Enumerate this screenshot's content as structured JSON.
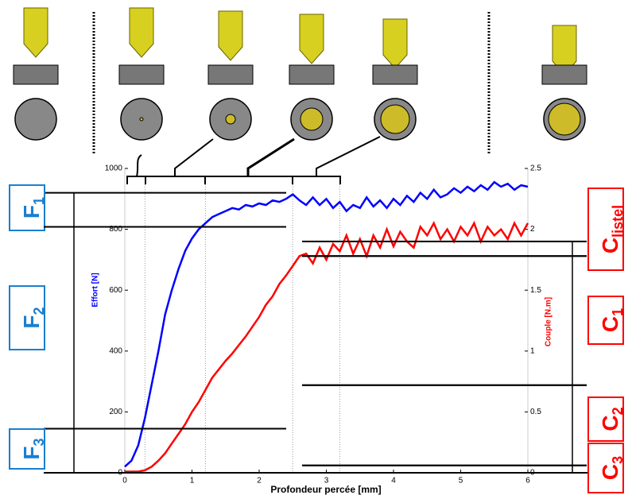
{
  "chart_data": {
    "type": "line",
    "x_label": "Profondeur percée [mm]",
    "y_label": "Effort [N]",
    "y2_label": "Couple [N.m]",
    "xlim": [
      0,
      6
    ],
    "xticks": [
      0,
      1,
      2,
      3,
      4,
      5,
      6
    ],
    "ylim": [
      0,
      1000
    ],
    "yticks": [
      0,
      200,
      400,
      600,
      800,
      1000
    ],
    "y2lim": [
      0,
      2.5
    ],
    "y2ticks": [
      0,
      0.5,
      1,
      1.5,
      2,
      2.5
    ],
    "series": [
      {
        "name": "Effort",
        "color": "#0000ff",
        "axis": "y",
        "x": [
          0,
          0.1,
          0.2,
          0.3,
          0.4,
          0.5,
          0.6,
          0.7,
          0.8,
          0.9,
          1.0,
          1.1,
          1.2,
          1.3,
          1.4,
          1.5,
          1.6,
          1.7,
          1.8,
          1.9,
          2.0,
          2.1,
          2.2,
          2.3,
          2.4,
          2.5,
          2.6,
          2.7,
          2.8,
          2.9,
          3.0,
          3.1,
          3.2,
          3.3,
          3.4,
          3.5,
          3.6,
          3.7,
          3.8,
          3.9,
          4.0,
          4.1,
          4.2,
          4.3,
          4.4,
          4.5,
          4.6,
          4.7,
          4.8,
          4.9,
          5.0,
          5.1,
          5.2,
          5.3,
          5.4,
          5.5,
          5.6,
          5.7,
          5.8,
          5.9,
          6.0
        ],
        "values": [
          20,
          40,
          90,
          180,
          290,
          400,
          520,
          600,
          670,
          730,
          770,
          800,
          820,
          840,
          850,
          860,
          870,
          865,
          880,
          875,
          885,
          880,
          895,
          890,
          900,
          915,
          895,
          880,
          905,
          880,
          900,
          870,
          890,
          860,
          880,
          870,
          905,
          875,
          895,
          870,
          900,
          880,
          910,
          890,
          920,
          900,
          930,
          905,
          915,
          935,
          920,
          940,
          925,
          945,
          930,
          955,
          940,
          950,
          930,
          945,
          940
        ]
      },
      {
        "name": "Couple",
        "color": "#ff0000",
        "axis": "y2",
        "x": [
          0,
          0.1,
          0.2,
          0.3,
          0.4,
          0.5,
          0.6,
          0.7,
          0.8,
          0.9,
          1.0,
          1.1,
          1.2,
          1.3,
          1.4,
          1.5,
          1.6,
          1.7,
          1.8,
          1.9,
          2.0,
          2.1,
          2.2,
          2.3,
          2.4,
          2.5,
          2.6,
          2.7,
          2.8,
          2.9,
          3.0,
          3.1,
          3.2,
          3.3,
          3.4,
          3.5,
          3.6,
          3.7,
          3.8,
          3.9,
          4.0,
          4.1,
          4.2,
          4.3,
          4.4,
          4.5,
          4.6,
          4.7,
          4.8,
          4.9,
          5.0,
          5.1,
          5.2,
          5.3,
          5.4,
          5.5,
          5.6,
          5.7,
          5.8,
          5.9,
          6.0
        ],
        "values": [
          0.01,
          0.01,
          0.01,
          0.02,
          0.05,
          0.1,
          0.16,
          0.24,
          0.32,
          0.4,
          0.5,
          0.58,
          0.68,
          0.78,
          0.85,
          0.92,
          0.98,
          1.05,
          1.12,
          1.2,
          1.28,
          1.38,
          1.45,
          1.55,
          1.62,
          1.7,
          1.78,
          1.8,
          1.72,
          1.85,
          1.75,
          1.88,
          1.82,
          1.95,
          1.8,
          1.92,
          1.78,
          1.95,
          1.85,
          2.0,
          1.86,
          1.98,
          1.9,
          1.85,
          2.02,
          1.95,
          2.05,
          1.92,
          2.0,
          1.9,
          2.02,
          1.95,
          2.05,
          1.9,
          2.02,
          1.95,
          2.0,
          1.92,
          2.05,
          1.95,
          2.05
        ]
      }
    ],
    "effort_annotations": [
      {
        "letter": "F",
        "sub": "1",
        "from": 808,
        "to": 920
      },
      {
        "letter": "F",
        "sub": "2",
        "from": 145,
        "to": 808
      },
      {
        "letter": "F",
        "sub": "3",
        "from": 0,
        "to": 145
      }
    ],
    "couple_annotations": [
      {
        "letter": "C",
        "sub": "listel",
        "from": 1.78,
        "to": 1.9
      },
      {
        "letter": "C",
        "sub": "1",
        "from": 0.72,
        "to": 1.78
      },
      {
        "letter": "C",
        "sub": "2",
        "from": 0.06,
        "to": 0.72
      },
      {
        "letter": "C",
        "sub": "3",
        "from": 0,
        "to": 0.06
      }
    ],
    "phase_depths": [
      0.3,
      1.2,
      2.5,
      3.2
    ]
  }
}
